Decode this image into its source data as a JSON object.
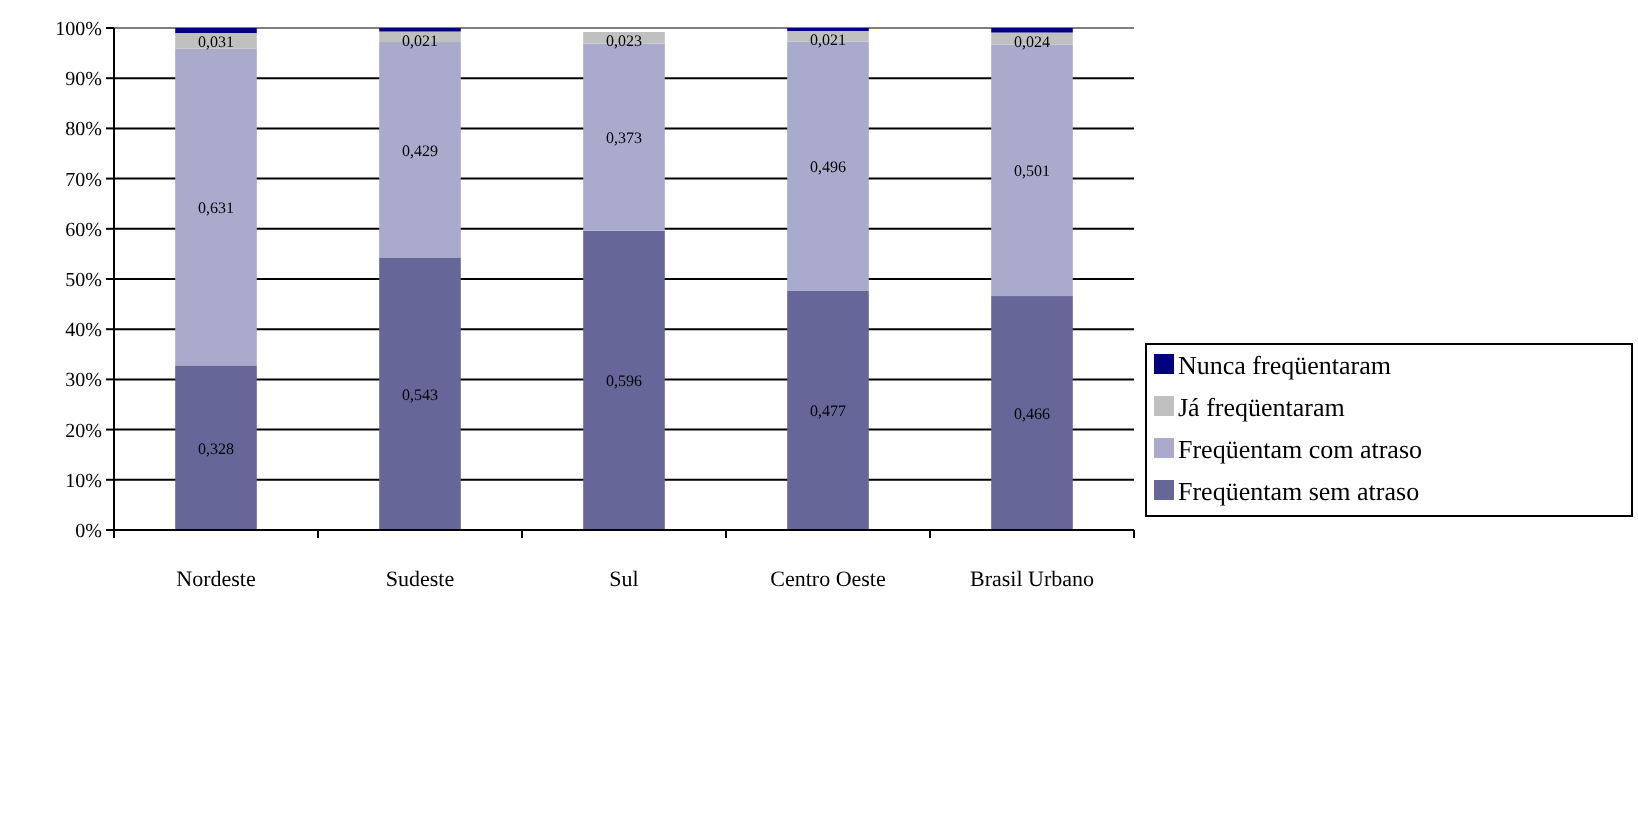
{
  "chart_data": {
    "type": "bar",
    "stacked": true,
    "categories": [
      "Nordeste",
      "Sudeste",
      "Sul",
      "Centro Oeste",
      "Brasil Urbano"
    ],
    "series": [
      {
        "name": "Freqüentam sem atraso",
        "color": "#666699",
        "values": [
          0.328,
          0.543,
          0.596,
          0.477,
          0.466
        ],
        "value_labels": [
          "0,328",
          "0,543",
          "0,596",
          "0,477",
          "0,466"
        ]
      },
      {
        "name": "Freqüentam com atraso",
        "color": "#aaaacc",
        "values": [
          0.631,
          0.429,
          0.373,
          0.496,
          0.501
        ],
        "value_labels": [
          "0,631",
          "0,429",
          "0,373",
          "0,496",
          "0,501"
        ]
      },
      {
        "name": "Já freqüentaram",
        "color": "#c0c0c0",
        "values": [
          0.031,
          0.021,
          0.023,
          0.021,
          0.024
        ],
        "value_labels": [
          "0,031",
          "0,021",
          "0,023",
          "0,021",
          "0,024"
        ]
      },
      {
        "name": "Nunca freqüentaram",
        "color": "#000080",
        "values": [
          0.01,
          0.007,
          0,
          0.006,
          0.009
        ]
      }
    ],
    "ylim": [
      0,
      1
    ],
    "yticks": [
      {
        "value": 0,
        "label": "0%"
      },
      {
        "value": 0.1,
        "label": "10%"
      },
      {
        "value": 0.2,
        "label": "20%"
      },
      {
        "value": 0.3,
        "label": "30%"
      },
      {
        "value": 0.4,
        "label": "40%"
      },
      {
        "value": 0.5,
        "label": "50%"
      },
      {
        "value": 0.6,
        "label": "60%"
      },
      {
        "value": 0.7,
        "label": "70%"
      },
      {
        "value": 0.8,
        "label": "80%"
      },
      {
        "value": 0.9,
        "label": "90%"
      },
      {
        "value": 1,
        "label": "100%"
      }
    ],
    "grid": "y",
    "legend": "right"
  }
}
